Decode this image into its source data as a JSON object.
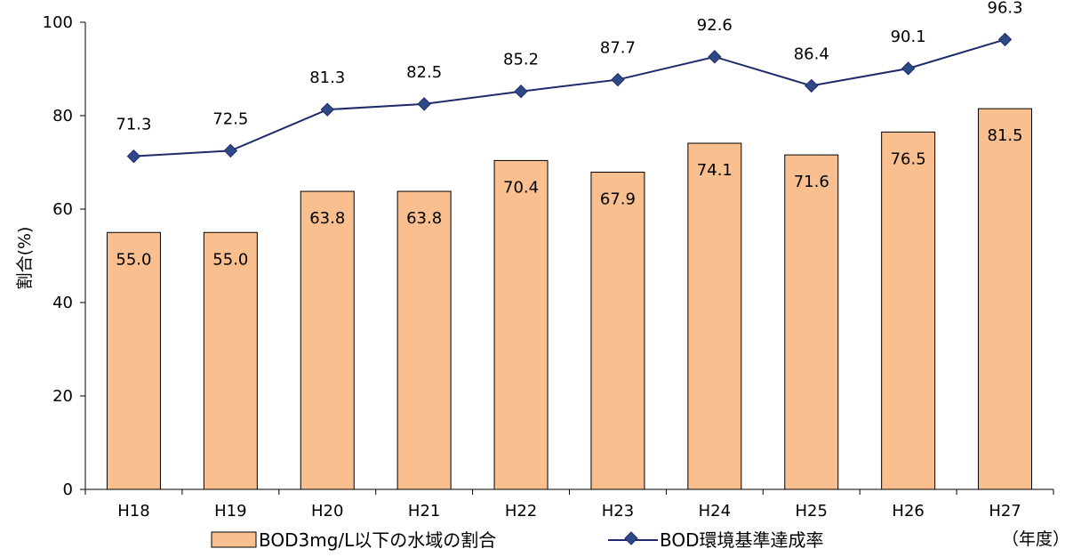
{
  "chart_data": {
    "type": "bar",
    "categories": [
      "H18",
      "H19",
      "H20",
      "H21",
      "H22",
      "H23",
      "H24",
      "H25",
      "H26",
      "H27"
    ],
    "series": [
      {
        "name": "BOD3mg/L以下の水域の割合",
        "kind": "bar",
        "values": [
          55.0,
          55.0,
          63.8,
          63.8,
          70.4,
          67.9,
          74.1,
          71.6,
          76.5,
          81.5
        ],
        "labels": [
          "55.0",
          "55.0",
          "63.8",
          "63.8",
          "70.4",
          "67.9",
          "74.1",
          "71.6",
          "76.5",
          "81.5"
        ]
      },
      {
        "name": "BOD環境基準達成率",
        "kind": "line",
        "values": [
          71.3,
          72.5,
          81.3,
          82.5,
          85.2,
          87.7,
          92.6,
          86.4,
          90.1,
          96.3
        ],
        "labels": [
          "71.3",
          "72.5",
          "81.3",
          "82.5",
          "85.2",
          "87.7",
          "92.6",
          "86.4",
          "90.1",
          "96.3"
        ]
      }
    ],
    "ylabel": "割合(%)",
    "xunit": "（年度）",
    "ylim": [
      0,
      100
    ],
    "yticks": [
      0,
      20,
      40,
      60,
      80,
      100
    ],
    "ytick_labels": [
      "0",
      "20",
      "40",
      "60",
      "80",
      "100"
    ],
    "grid": false,
    "legend_position": "bottom",
    "colors": {
      "bar_fill": "#F9BF8F",
      "bar_stroke": "#000000",
      "line": "#1F2A6B",
      "marker": "#2E4A86"
    }
  }
}
